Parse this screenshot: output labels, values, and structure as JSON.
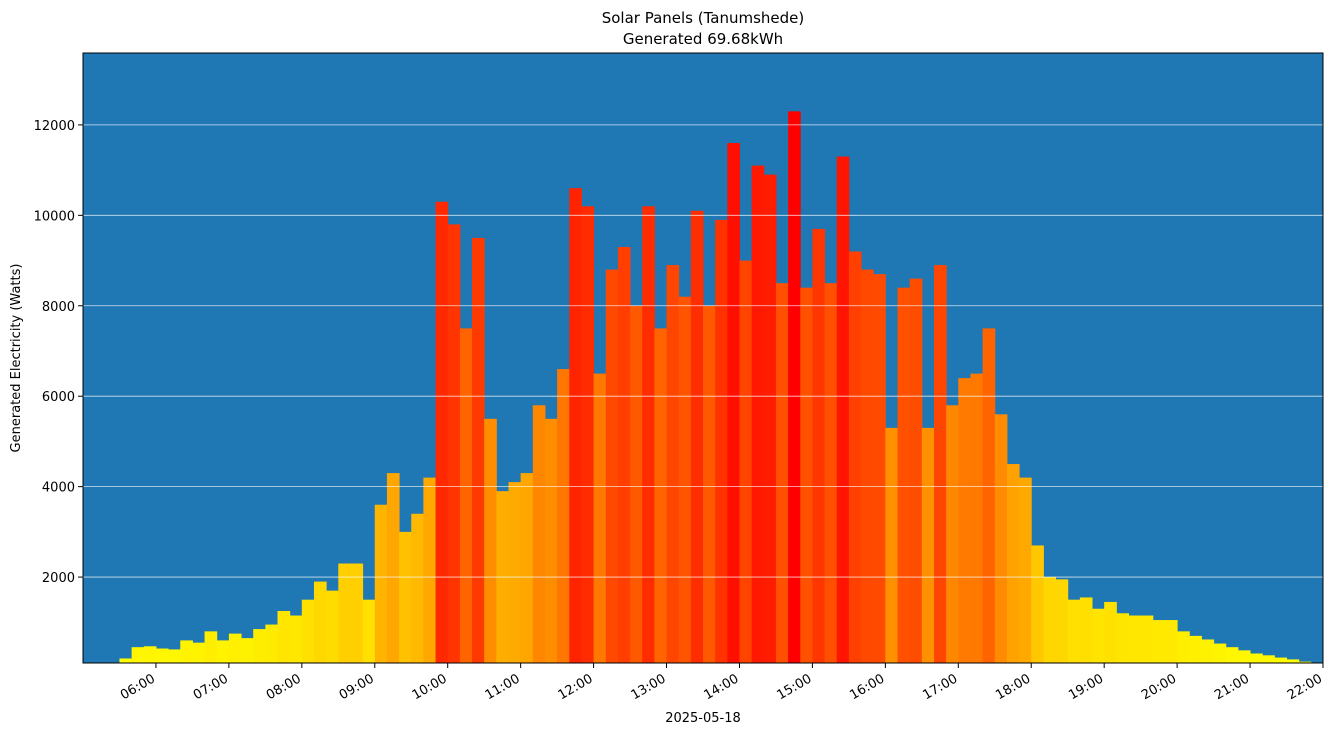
{
  "chart_data": {
    "type": "bar",
    "title": "Solar Panels (Tanumshede)",
    "subtitle": "Generated 69.68kWh",
    "x_label": "2025-05-18",
    "y_label": "Generated Electricity (Watts)",
    "x": [
      "05:10",
      "05:20",
      "05:30",
      "05:40",
      "05:50",
      "06:00",
      "06:10",
      "06:20",
      "06:30",
      "06:40",
      "06:50",
      "07:00",
      "07:10",
      "07:20",
      "07:30",
      "07:40",
      "07:50",
      "08:00",
      "08:10",
      "08:20",
      "08:30",
      "08:40",
      "08:50",
      "09:00",
      "09:10",
      "09:20",
      "09:30",
      "09:40",
      "09:50",
      "10:00",
      "10:10",
      "10:20",
      "10:30",
      "10:40",
      "10:50",
      "11:00",
      "11:10",
      "11:20",
      "11:30",
      "11:40",
      "11:50",
      "12:00",
      "12:10",
      "12:20",
      "12:30",
      "12:40",
      "12:50",
      "13:00",
      "13:10",
      "13:20",
      "13:30",
      "13:40",
      "13:50",
      "14:00",
      "14:10",
      "14:20",
      "14:30",
      "14:40",
      "14:50",
      "15:00",
      "15:10",
      "15:20",
      "15:30",
      "15:40",
      "15:50",
      "16:00",
      "16:10",
      "16:20",
      "16:30",
      "16:40",
      "16:50",
      "17:00",
      "17:10",
      "17:20",
      "17:30",
      "17:40",
      "17:50",
      "18:00",
      "18:10",
      "18:20",
      "18:30",
      "18:40",
      "18:50",
      "19:00",
      "19:10",
      "19:20",
      "19:30",
      "19:40",
      "19:50",
      "20:00",
      "20:10",
      "20:20",
      "20:30",
      "20:40",
      "20:50",
      "21:00",
      "21:10",
      "21:20",
      "21:30",
      "21:40",
      "21:50"
    ],
    "values": [
      80,
      100,
      200,
      450,
      470,
      420,
      400,
      600,
      550,
      800,
      600,
      750,
      650,
      850,
      950,
      1250,
      1150,
      1500,
      1900,
      1700,
      2300,
      2300,
      1500,
      3600,
      4300,
      3000,
      3400,
      4200,
      10300,
      9800,
      7500,
      9500,
      5500,
      3900,
      4100,
      4300,
      5800,
      5500,
      6600,
      10600,
      10200,
      6500,
      8800,
      9300,
      8000,
      10200,
      7500,
      8900,
      8200,
      10100,
      8000,
      9900,
      11600,
      9000,
      11100,
      10900,
      8500,
      12300,
      8400,
      9700,
      8500,
      11300,
      9200,
      8800,
      8700,
      5300,
      8400,
      8600,
      5300,
      8900,
      5800,
      6400,
      6500,
      7500,
      5600,
      4500,
      4200,
      2700,
      2000,
      1950,
      1500,
      1550,
      1300,
      1450,
      1200,
      1150,
      1150,
      1050,
      1050,
      800,
      700,
      620,
      530,
      450,
      380,
      310,
      270,
      220,
      180,
      130,
      90
    ],
    "colormap": "autumn_r",
    "background": "#1f77b4",
    "xlim": [
      "05:00",
      "22:00"
    ],
    "xticks": [
      "06:00",
      "07:00",
      "08:00",
      "09:00",
      "10:00",
      "11:00",
      "12:00",
      "13:00",
      "14:00",
      "15:00",
      "16:00",
      "17:00",
      "18:00",
      "19:00",
      "20:00",
      "21:00",
      "22:00"
    ],
    "ylim": [
      100,
      13590
    ],
    "yticks": [
      2000,
      4000,
      6000,
      8000,
      10000,
      12000
    ],
    "grid": true
  }
}
